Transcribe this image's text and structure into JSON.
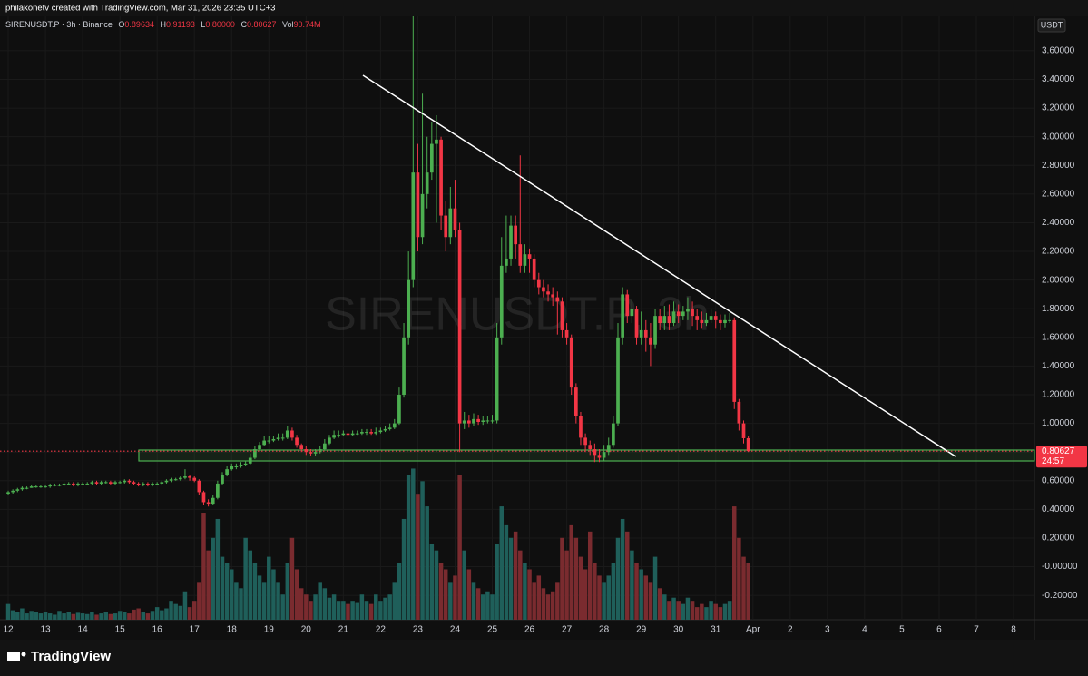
{
  "credit": "philakonetv created with TradingView.com, Mar 31, 2026 23:35 UTC+3",
  "brand": "TradingView",
  "chart_data": {
    "type": "candlestick",
    "title": "SIRENUSDT.P · 3h · Binance",
    "watermark": "SIRENUSDT.P, 3h",
    "ylabel": "USDT",
    "legend_keys": {
      "open": "O",
      "high": "H",
      "low": "L",
      "close": "C",
      "volume": "Vol"
    },
    "legend_values": {
      "low": "0.80000",
      "volume": "90.74M"
    },
    "countdown": "24:57",
    "up_color": "#26a69a",
    "up_body_color": "#4caf50",
    "down_color": "#f23645",
    "up_volume_color": "#1f5f5a",
    "down_volume_color": "#7a2b2f",
    "grid": true,
    "xlim": [
      -0.22,
      27.56
    ],
    "xticks": [
      {
        "value": 0,
        "label": "12"
      },
      {
        "value": 1,
        "label": "13"
      },
      {
        "value": 2,
        "label": "14"
      },
      {
        "value": 3,
        "label": "15"
      },
      {
        "value": 4,
        "label": "16"
      },
      {
        "value": 5,
        "label": "17"
      },
      {
        "value": 6,
        "label": "18"
      },
      {
        "value": 7,
        "label": "19"
      },
      {
        "value": 8,
        "label": "20"
      },
      {
        "value": 9,
        "label": "21"
      },
      {
        "value": 10,
        "label": "22"
      },
      {
        "value": 11,
        "label": "23"
      },
      {
        "value": 12,
        "label": "24"
      },
      {
        "value": 13,
        "label": "25"
      },
      {
        "value": 14,
        "label": "26"
      },
      {
        "value": 15,
        "label": "27"
      },
      {
        "value": 16,
        "label": "28"
      },
      {
        "value": 17,
        "label": "29"
      },
      {
        "value": 18,
        "label": "30"
      },
      {
        "value": 19,
        "label": "31"
      },
      {
        "value": 20,
        "label": "Apr"
      },
      {
        "value": 21,
        "label": "2"
      },
      {
        "value": 22,
        "label": "3"
      },
      {
        "value": 23,
        "label": "4"
      },
      {
        "value": 24,
        "label": "5"
      },
      {
        "value": 25,
        "label": "6"
      },
      {
        "value": 26,
        "label": "7"
      },
      {
        "value": 27,
        "label": "8"
      }
    ],
    "ylim": [
      -0.37,
      3.84
    ],
    "yticks": [
      {
        "value": 3.6,
        "label": "3.60000"
      },
      {
        "value": 3.4,
        "label": "3.40000"
      },
      {
        "value": 3.2,
        "label": "3.20000"
      },
      {
        "value": 3.0,
        "label": "3.00000"
      },
      {
        "value": 2.8,
        "label": "2.80000"
      },
      {
        "value": 2.6,
        "label": "2.60000"
      },
      {
        "value": 2.4,
        "label": "2.40000"
      },
      {
        "value": 2.2,
        "label": "2.20000"
      },
      {
        "value": 2.0,
        "label": "2.00000"
      },
      {
        "value": 1.8,
        "label": "1.80000"
      },
      {
        "value": 1.6,
        "label": "1.60000"
      },
      {
        "value": 1.4,
        "label": "1.40000"
      },
      {
        "value": 1.2,
        "label": "1.20000"
      },
      {
        "value": 1.0,
        "label": "1.00000"
      },
      {
        "value": 0.8,
        "label": "0.80000"
      },
      {
        "value": 0.6,
        "label": "0.60000"
      },
      {
        "value": 0.4,
        "label": "0.40000"
      },
      {
        "value": 0.2,
        "label": "0.20000"
      },
      {
        "value": 0,
        "label": "-0.00000"
      },
      {
        "value": -0.2,
        "label": "-0.20000"
      }
    ],
    "x": [
      0,
      0.125,
      0.25,
      0.375,
      0.5,
      0.625,
      0.75,
      0.875,
      1,
      1.125,
      1.25,
      1.375,
      1.5,
      1.625,
      1.75,
      1.875,
      2,
      2.125,
      2.25,
      2.375,
      2.5,
      2.625,
      2.75,
      2.875,
      3,
      3.125,
      3.25,
      3.375,
      3.5,
      3.625,
      3.75,
      3.875,
      4,
      4.125,
      4.25,
      4.375,
      4.5,
      4.625,
      4.75,
      4.875,
      5,
      5.125,
      5.25,
      5.375,
      5.5,
      5.625,
      5.75,
      5.875,
      6,
      6.125,
      6.25,
      6.375,
      6.5,
      6.625,
      6.75,
      6.875,
      7,
      7.125,
      7.25,
      7.375,
      7.5,
      7.625,
      7.75,
      7.875,
      8,
      8.125,
      8.25,
      8.375,
      8.5,
      8.625,
      8.75,
      8.875,
      9,
      9.125,
      9.25,
      9.375,
      9.5,
      9.625,
      9.75,
      9.875,
      10,
      10.125,
      10.25,
      10.375,
      10.5,
      10.625,
      10.75,
      10.875,
      11,
      11.125,
      11.25,
      11.375,
      11.5,
      11.625,
      11.75,
      11.875,
      12,
      12.125,
      12.25,
      12.375,
      12.5,
      12.625,
      12.75,
      12.875,
      13,
      13.125,
      13.25,
      13.375,
      13.5,
      13.625,
      13.75,
      13.875,
      14,
      14.125,
      14.25,
      14.375,
      14.5,
      14.625,
      14.75,
      14.875,
      15,
      15.125,
      15.25,
      15.375,
      15.5,
      15.625,
      15.75,
      15.875,
      16,
      16.125,
      16.25,
      16.375,
      16.5,
      16.625,
      16.75,
      16.875,
      17,
      17.125,
      17.25,
      17.375,
      17.5,
      17.625,
      17.75,
      17.875,
      18,
      18.125,
      18.25,
      18.375,
      18.5,
      18.625,
      18.75,
      18.875,
      19,
      19.125,
      19.25,
      19.375,
      19.5,
      19.625,
      19.75,
      19.875
    ],
    "open": [
      0.51,
      0.52,
      0.53,
      0.54,
      0.55,
      0.55,
      0.56,
      0.56,
      0.56,
      0.56,
      0.57,
      0.57,
      0.57,
      0.58,
      0.58,
      0.57,
      0.58,
      0.58,
      0.58,
      0.59,
      0.58,
      0.59,
      0.59,
      0.58,
      0.59,
      0.59,
      0.6,
      0.59,
      0.58,
      0.57,
      0.58,
      0.57,
      0.58,
      0.58,
      0.59,
      0.6,
      0.61,
      0.61,
      0.62,
      0.63,
      0.62,
      0.6,
      0.52,
      0.45,
      0.44,
      0.48,
      0.58,
      0.64,
      0.68,
      0.7,
      0.7,
      0.71,
      0.72,
      0.76,
      0.82,
      0.85,
      0.88,
      0.88,
      0.89,
      0.9,
      0.9,
      0.95,
      0.9,
      0.85,
      0.82,
      0.8,
      0.79,
      0.8,
      0.82,
      0.86,
      0.9,
      0.92,
      0.92,
      0.93,
      0.92,
      0.93,
      0.93,
      0.94,
      0.94,
      0.93,
      0.94,
      0.95,
      0.96,
      0.97,
      1.0,
      1.2,
      1.6,
      2.0,
      2.75,
      2.3,
      2.6,
      2.75,
      2.95,
      2.98,
      2.45,
      2.3,
      2.5,
      2.35,
      1.0,
      1.02,
      1.0,
      1.03,
      1.01,
      1.02,
      1.02,
      1.02,
      1.6,
      2.1,
      2.15,
      2.38,
      2.25,
      2.1,
      2.18,
      2.15,
      2.0,
      1.95,
      1.92,
      1.9,
      1.88,
      1.85,
      1.65,
      1.6,
      1.25,
      1.05,
      0.9,
      0.85,
      0.82,
      0.78,
      0.76,
      0.8,
      0.85,
      1.0,
      1.6,
      1.9,
      1.75,
      1.8,
      1.6,
      1.65,
      1.6,
      1.55,
      1.75,
      1.7,
      1.75,
      1.7,
      1.78,
      1.75,
      1.78,
      1.8,
      1.75,
      1.72,
      1.7,
      1.72,
      1.75,
      1.72,
      1.7,
      1.72,
      1.72,
      1.15,
      1.0,
      0.89634
    ],
    "high": [
      0.53,
      0.54,
      0.55,
      0.56,
      0.56,
      0.57,
      0.57,
      0.57,
      0.57,
      0.58,
      0.58,
      0.58,
      0.59,
      0.59,
      0.59,
      0.59,
      0.59,
      0.59,
      0.6,
      0.6,
      0.6,
      0.6,
      0.6,
      0.6,
      0.6,
      0.61,
      0.61,
      0.6,
      0.59,
      0.59,
      0.59,
      0.59,
      0.59,
      0.6,
      0.61,
      0.62,
      0.62,
      0.63,
      0.68,
      0.64,
      0.63,
      0.61,
      0.53,
      0.47,
      0.5,
      0.6,
      0.66,
      0.7,
      0.72,
      0.72,
      0.73,
      0.74,
      0.79,
      0.84,
      0.87,
      0.91,
      0.91,
      0.91,
      0.93,
      0.93,
      0.98,
      0.97,
      0.92,
      0.86,
      0.84,
      0.82,
      0.82,
      0.84,
      0.89,
      0.92,
      0.95,
      0.95,
      0.95,
      0.95,
      0.95,
      0.95,
      0.96,
      0.96,
      0.96,
      0.97,
      0.97,
      0.98,
      1.0,
      1.03,
      1.25,
      1.7,
      2.2,
      3.84,
      2.95,
      3.3,
      3.0,
      3.1,
      3.15,
      3.0,
      2.55,
      2.65,
      2.7,
      2.4,
      1.08,
      1.06,
      1.07,
      1.06,
      1.05,
      1.05,
      1.06,
      1.7,
      2.3,
      2.45,
      2.45,
      2.45,
      2.87,
      2.25,
      2.22,
      2.18,
      2.05,
      2.0,
      1.97,
      1.95,
      1.92,
      1.88,
      1.7,
      1.62,
      1.28,
      1.08,
      0.93,
      0.88,
      0.86,
      0.82,
      0.85,
      0.9,
      1.05,
      1.7,
      1.95,
      1.93,
      1.86,
      1.82,
      1.78,
      1.72,
      1.7,
      1.8,
      1.8,
      1.82,
      1.83,
      1.85,
      1.83,
      1.82,
      1.88,
      1.85,
      1.8,
      1.78,
      1.77,
      1.8,
      1.78,
      1.76,
      1.76,
      1.77,
      1.74,
      1.17,
      1.02,
      0.91193
    ],
    "low": [
      0.5,
      0.51,
      0.52,
      0.53,
      0.54,
      0.55,
      0.55,
      0.55,
      0.55,
      0.55,
      0.56,
      0.56,
      0.56,
      0.57,
      0.56,
      0.56,
      0.57,
      0.57,
      0.57,
      0.57,
      0.57,
      0.58,
      0.57,
      0.57,
      0.58,
      0.58,
      0.58,
      0.57,
      0.56,
      0.56,
      0.56,
      0.56,
      0.57,
      0.57,
      0.58,
      0.59,
      0.6,
      0.6,
      0.61,
      0.6,
      0.59,
      0.5,
      0.43,
      0.42,
      0.43,
      0.47,
      0.57,
      0.63,
      0.67,
      0.68,
      0.69,
      0.7,
      0.71,
      0.75,
      0.81,
      0.84,
      0.86,
      0.87,
      0.88,
      0.88,
      0.89,
      0.88,
      0.83,
      0.8,
      0.78,
      0.77,
      0.77,
      0.79,
      0.81,
      0.85,
      0.89,
      0.9,
      0.91,
      0.91,
      0.91,
      0.92,
      0.92,
      0.92,
      0.92,
      0.92,
      0.93,
      0.94,
      0.95,
      0.96,
      0.99,
      1.18,
      1.55,
      1.95,
      2.2,
      2.25,
      2.5,
      2.7,
      2.4,
      2.35,
      2.2,
      2.25,
      2.3,
      0.8,
      0.96,
      0.97,
      0.98,
      0.99,
      0.99,
      1.0,
      1.0,
      1.0,
      1.55,
      2.05,
      2.1,
      2.15,
      2.05,
      2.05,
      2.05,
      1.95,
      1.9,
      1.88,
      1.85,
      1.82,
      1.62,
      1.6,
      1.55,
      1.2,
      1.0,
      0.85,
      0.8,
      0.78,
      0.73,
      0.73,
      0.74,
      0.78,
      0.83,
      0.98,
      1.55,
      1.7,
      1.7,
      1.55,
      1.55,
      1.5,
      1.4,
      1.52,
      1.65,
      1.65,
      1.65,
      1.68,
      1.7,
      1.72,
      1.72,
      1.68,
      1.65,
      1.66,
      1.68,
      1.7,
      1.66,
      1.65,
      1.67,
      1.7,
      1.1,
      0.95,
      0.86,
      0.8
    ],
    "close": [
      0.52,
      0.53,
      0.54,
      0.55,
      0.55,
      0.56,
      0.56,
      0.56,
      0.56,
      0.57,
      0.57,
      0.57,
      0.58,
      0.58,
      0.57,
      0.58,
      0.58,
      0.58,
      0.59,
      0.58,
      0.59,
      0.59,
      0.58,
      0.59,
      0.59,
      0.6,
      0.59,
      0.58,
      0.57,
      0.58,
      0.57,
      0.58,
      0.58,
      0.59,
      0.6,
      0.61,
      0.61,
      0.62,
      0.63,
      0.62,
      0.6,
      0.52,
      0.45,
      0.44,
      0.48,
      0.58,
      0.64,
      0.68,
      0.7,
      0.7,
      0.71,
      0.72,
      0.76,
      0.82,
      0.85,
      0.88,
      0.88,
      0.89,
      0.9,
      0.9,
      0.95,
      0.9,
      0.85,
      0.82,
      0.8,
      0.79,
      0.8,
      0.82,
      0.86,
      0.9,
      0.92,
      0.92,
      0.93,
      0.92,
      0.93,
      0.93,
      0.94,
      0.94,
      0.93,
      0.94,
      0.95,
      0.96,
      0.97,
      1.0,
      1.2,
      1.6,
      2.0,
      2.75,
      2.3,
      2.6,
      2.75,
      2.95,
      2.98,
      2.45,
      2.3,
      2.5,
      2.35,
      1.0,
      1.02,
      1.0,
      1.03,
      1.01,
      1.02,
      1.02,
      1.02,
      1.6,
      2.1,
      2.15,
      2.38,
      2.25,
      2.1,
      2.18,
      2.15,
      2.0,
      1.95,
      1.92,
      1.9,
      1.88,
      1.85,
      1.65,
      1.6,
      1.25,
      1.05,
      0.9,
      0.85,
      0.82,
      0.78,
      0.76,
      0.8,
      0.85,
      1.0,
      1.6,
      1.9,
      1.75,
      1.8,
      1.6,
      1.65,
      1.6,
      1.55,
      1.75,
      1.7,
      1.75,
      1.7,
      1.78,
      1.75,
      1.78,
      1.8,
      1.75,
      1.72,
      1.7,
      1.72,
      1.75,
      1.72,
      1.7,
      1.72,
      1.72,
      1.15,
      1.0,
      0.89634,
      0.80627
    ],
    "volume": [
      25,
      15,
      12,
      18,
      10,
      14,
      12,
      10,
      12,
      10,
      8,
      14,
      10,
      12,
      9,
      11,
      10,
      9,
      12,
      8,
      10,
      12,
      9,
      10,
      14,
      12,
      10,
      16,
      18,
      12,
      10,
      14,
      20,
      15,
      18,
      30,
      25,
      22,
      45,
      20,
      30,
      60,
      170,
      110,
      130,
      160,
      100,
      90,
      80,
      60,
      50,
      130,
      110,
      90,
      70,
      60,
      100,
      80,
      60,
      40,
      90,
      130,
      80,
      50,
      40,
      30,
      40,
      60,
      50,
      35,
      40,
      30,
      30,
      25,
      30,
      28,
      40,
      30,
      25,
      40,
      30,
      35,
      40,
      60,
      90,
      160,
      230,
      240,
      200,
      220,
      180,
      120,
      110,
      90,
      80,
      60,
      70,
      230,
      110,
      80,
      60,
      50,
      40,
      45,
      40,
      120,
      180,
      150,
      130,
      140,
      110,
      90,
      80,
      60,
      70,
      50,
      40,
      45,
      60,
      130,
      110,
      150,
      130,
      100,
      80,
      140,
      90,
      70,
      60,
      70,
      90,
      130,
      160,
      140,
      110,
      90,
      80,
      70,
      60,
      100,
      50,
      40,
      30,
      35,
      30,
      25,
      35,
      30,
      20,
      25,
      20,
      30,
      25,
      20,
      25,
      30,
      180,
      130,
      100,
      90.74
    ]
  }
}
